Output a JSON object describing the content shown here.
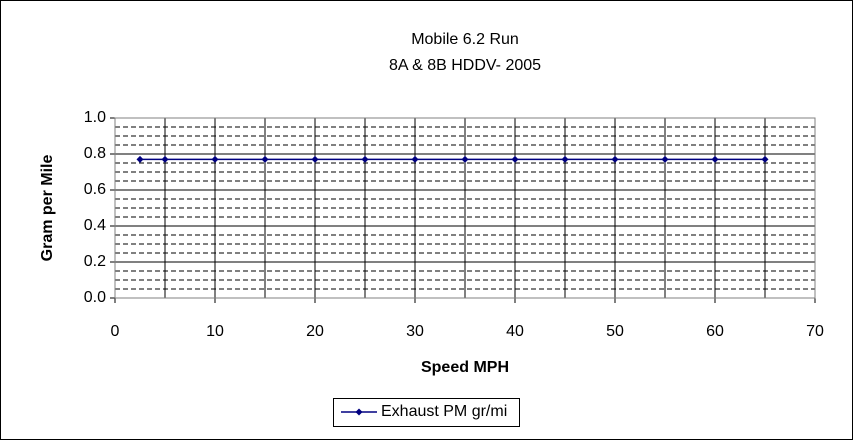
{
  "chart_data": {
    "type": "line",
    "title": "Mobile 6.2 Run",
    "subtitle": "8A & 8B HDDV- 2005",
    "x_label": "Speed MPH",
    "y_label": "Gram per Mile",
    "x": [
      2.5,
      5,
      10,
      15,
      20,
      25,
      30,
      35,
      40,
      45,
      50,
      55,
      60,
      65
    ],
    "series": [
      {
        "name": "Exhaust PM gr/mi",
        "color": "#000080",
        "values": [
          0.77,
          0.77,
          0.77,
          0.77,
          0.77,
          0.77,
          0.77,
          0.77,
          0.77,
          0.77,
          0.77,
          0.77,
          0.77,
          0.77
        ]
      }
    ],
    "xlim": [
      0,
      70
    ],
    "xticks": [
      0,
      10,
      20,
      30,
      40,
      50,
      60,
      70
    ],
    "ylim": [
      0,
      1
    ],
    "yticks": [
      {
        "value": 0,
        "label": "0.0"
      },
      0.2,
      0.4,
      0.6,
      0.8,
      {
        "value": 1,
        "label": "1.0"
      }
    ],
    "grid": true,
    "legend": "bottom"
  }
}
